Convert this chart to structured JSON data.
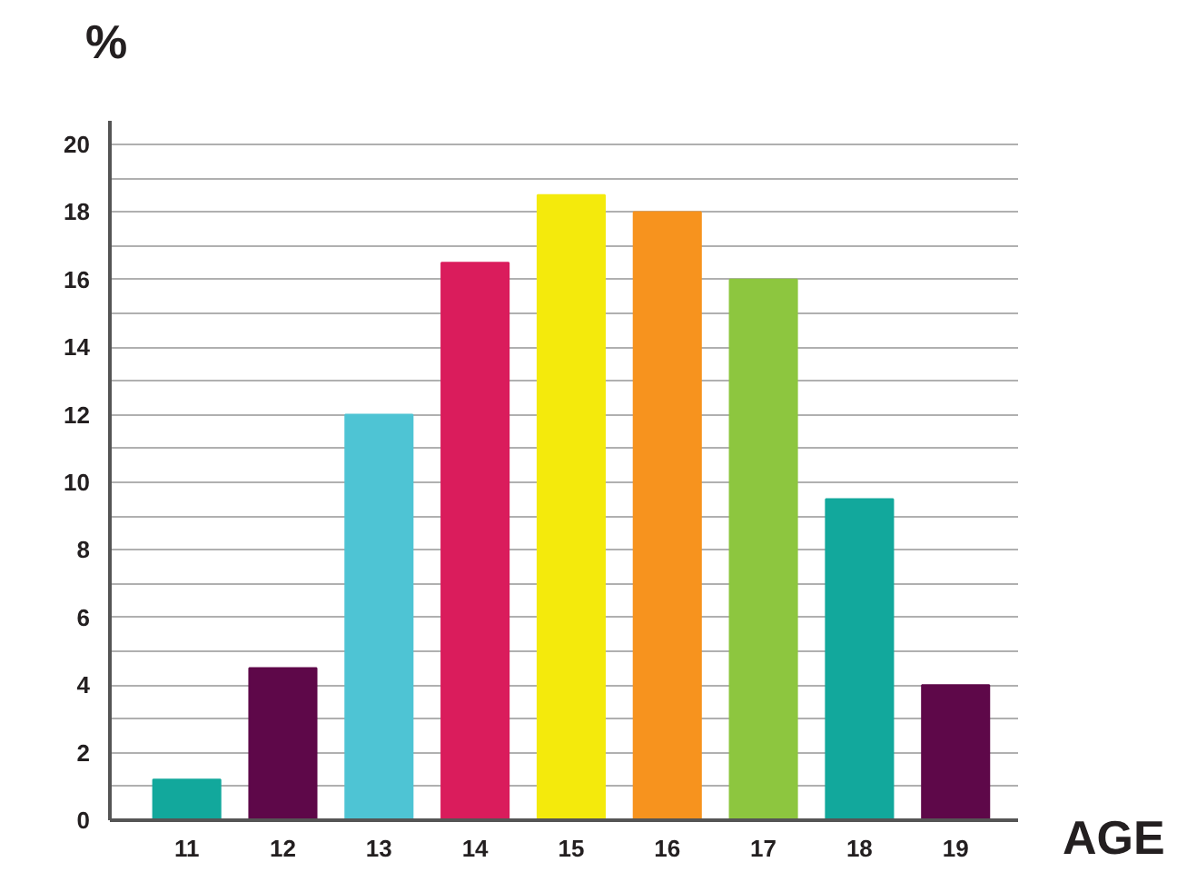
{
  "chart_data": {
    "type": "bar",
    "xlabel": "AGE",
    "ylabel": "%",
    "categories": [
      "11",
      "12",
      "13",
      "14",
      "15",
      "16",
      "17",
      "18",
      "19"
    ],
    "values": [
      1.2,
      4.5,
      12,
      16.5,
      18.5,
      18,
      16,
      9.5,
      4
    ],
    "colors": [
      "#12a89c",
      "#5e0849",
      "#4ec4d4",
      "#da1c5c",
      "#f4ea0c",
      "#f7931e",
      "#8dc63f",
      "#12a89c",
      "#5e0849"
    ],
    "ylim": [
      0,
      20.7
    ],
    "yticks": [
      0,
      {
        "value": 1,
        "label": null
      },
      2,
      {
        "value": 3,
        "label": null
      },
      4,
      {
        "value": 5,
        "label": null
      },
      6,
      {
        "value": 7,
        "label": null
      },
      8,
      {
        "value": 9,
        "label": null
      },
      10,
      {
        "value": 11,
        "label": null
      },
      12,
      {
        "value": 13,
        "label": null
      },
      14,
      {
        "value": 15,
        "label": null
      },
      16,
      {
        "value": 17,
        "label": null
      },
      18,
      {
        "value": 19,
        "label": null
      },
      20
    ],
    "grid": "y"
  }
}
